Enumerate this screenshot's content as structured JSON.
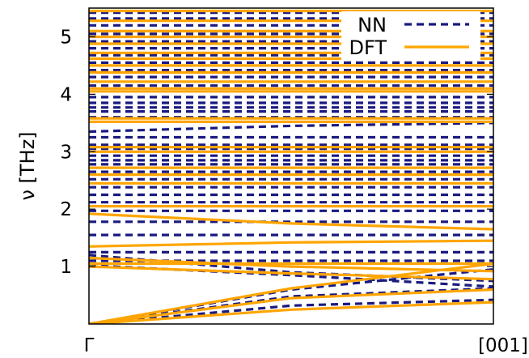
{
  "chart_data": {
    "type": "line",
    "ylabel": "ν [THz]",
    "x_tick_labels": [
      "Γ",
      "[001]"
    ],
    "y_ticks": [
      1,
      2,
      3,
      4,
      5
    ],
    "xlim": [
      0,
      1
    ],
    "ylim": [
      0,
      5.5
    ],
    "grid": false,
    "legend_position": "top-right",
    "series": [
      {
        "name": "NN",
        "style": "dashed",
        "color": "#1a1a80",
        "bands": [
          {
            "x": [
              0,
              0.5,
              1
            ],
            "y": [
              0,
              0.32,
              0.42
            ]
          },
          {
            "x": [
              0,
              0.5,
              1
            ],
            "y": [
              0,
              0.48,
              0.62
            ]
          },
          {
            "x": [
              0,
              0.5,
              1
            ],
            "y": [
              0,
              0.6,
              0.95
            ]
          },
          {
            "x": [
              0,
              0.5,
              1
            ],
            "y": [
              1.02,
              0.85,
              0.65
            ]
          },
          {
            "x": [
              0,
              0.5,
              1
            ],
            "y": [
              1.2,
              0.9,
              0.75
            ]
          },
          {
            "x": [
              0,
              1
            ],
            "y": [
              1.1,
              1.1
            ]
          },
          {
            "x": [
              0,
              1
            ],
            "y": [
              1.25,
              1.25
            ]
          },
          {
            "x": [
              0,
              1
            ],
            "y": [
              1.55,
              1.55
            ]
          },
          {
            "x": [
              0,
              1
            ],
            "y": [
              1.78,
              1.78
            ]
          },
          {
            "x": [
              0,
              1
            ],
            "y": [
              1.97,
              1.97
            ]
          },
          {
            "x": [
              0,
              1
            ],
            "y": [
              2.12,
              2.12
            ]
          },
          {
            "x": [
              0,
              1
            ],
            "y": [
              2.25,
              2.25
            ]
          },
          {
            "x": [
              0,
              1
            ],
            "y": [
              2.38,
              2.38
            ]
          },
          {
            "x": [
              0,
              1
            ],
            "y": [
              2.52,
              2.52
            ]
          },
          {
            "x": [
              0,
              1
            ],
            "y": [
              2.65,
              2.65
            ]
          },
          {
            "x": [
              0,
              1
            ],
            "y": [
              2.78,
              2.78
            ]
          },
          {
            "x": [
              0,
              1
            ],
            "y": [
              2.85,
              2.85
            ]
          },
          {
            "x": [
              0,
              1
            ],
            "y": [
              2.93,
              2.93
            ]
          },
          {
            "x": [
              0,
              1
            ],
            "y": [
              3.05,
              3.05
            ]
          },
          {
            "x": [
              0,
              1
            ],
            "y": [
              3.12,
              3.12
            ]
          },
          {
            "x": [
              0,
              1
            ],
            "y": [
              3.25,
              3.25
            ]
          },
          {
            "x": [
              0,
              0.5,
              1
            ],
            "y": [
              3.35,
              3.45,
              3.5
            ]
          },
          {
            "x": [
              0,
              1
            ],
            "y": [
              3.6,
              3.6
            ]
          },
          {
            "x": [
              0,
              1
            ],
            "y": [
              3.7,
              3.7
            ]
          },
          {
            "x": [
              0,
              1
            ],
            "y": [
              3.77,
              3.77
            ]
          },
          {
            "x": [
              0,
              1
            ],
            "y": [
              3.85,
              3.85
            ]
          },
          {
            "x": [
              0,
              1
            ],
            "y": [
              3.95,
              3.95
            ]
          },
          {
            "x": [
              0,
              1
            ],
            "y": [
              4.15,
              4.15
            ]
          },
          {
            "x": [
              0,
              1
            ],
            "y": [
              4.3,
              4.3
            ]
          },
          {
            "x": [
              0,
              1
            ],
            "y": [
              4.42,
              4.42
            ]
          },
          {
            "x": [
              0,
              1
            ],
            "y": [
              4.55,
              4.55
            ]
          },
          {
            "x": [
              0,
              1
            ],
            "y": [
              4.68,
              4.68
            ]
          },
          {
            "x": [
              0,
              1
            ],
            "y": [
              4.8,
              4.8
            ]
          },
          {
            "x": [
              0,
              1
            ],
            "y": [
              4.92,
              4.92
            ]
          },
          {
            "x": [
              0,
              1
            ],
            "y": [
              5.05,
              5.05
            ]
          },
          {
            "x": [
              0,
              1
            ],
            "y": [
              5.2,
              5.2
            ]
          },
          {
            "x": [
              0,
              1
            ],
            "y": [
              5.32,
              5.32
            ]
          },
          {
            "x": [
              0,
              1
            ],
            "y": [
              5.42,
              5.42
            ]
          }
        ]
      },
      {
        "name": "DFT",
        "style": "solid",
        "color": "#ffa500",
        "bands": [
          {
            "x": [
              0,
              0.5,
              1
            ],
            "y": [
              0,
              0.25,
              0.38
            ]
          },
          {
            "x": [
              0,
              0.5,
              1
            ],
            "y": [
              0,
              0.45,
              0.6
            ]
          },
          {
            "x": [
              0,
              0.5,
              1
            ],
            "y": [
              0,
              0.62,
              1.05
            ]
          },
          {
            "x": [
              0,
              0.5,
              1
            ],
            "y": [
              1.0,
              0.88,
              0.78
            ]
          },
          {
            "x": [
              0,
              0.5,
              1
            ],
            "y": [
              1.15,
              1.0,
              0.92
            ]
          },
          {
            "x": [
              0,
              1
            ],
            "y": [
              1.05,
              1.05
            ]
          },
          {
            "x": [
              0,
              0.5,
              1
            ],
            "y": [
              1.35,
              1.42,
              1.45
            ]
          },
          {
            "x": [
              0,
              0.5,
              1
            ],
            "y": [
              1.92,
              1.75,
              1.65
            ]
          },
          {
            "x": [
              0,
              1
            ],
            "y": [
              2.05,
              2.05
            ]
          },
          {
            "x": [
              0,
              1
            ],
            "y": [
              2.45,
              2.45
            ]
          },
          {
            "x": [
              0,
              1
            ],
            "y": [
              2.6,
              2.6
            ]
          },
          {
            "x": [
              0,
              1
            ],
            "y": [
              2.72,
              2.72
            ]
          },
          {
            "x": [
              0,
              1
            ],
            "y": [
              3.0,
              3.0
            ]
          },
          {
            "x": [
              0,
              1
            ],
            "y": [
              3.08,
              3.08
            ]
          },
          {
            "x": [
              0,
              1
            ],
            "y": [
              3.52,
              3.52
            ]
          },
          {
            "x": [
              0,
              1
            ],
            "y": [
              3.58,
              3.58
            ]
          },
          {
            "x": [
              0,
              1
            ],
            "y": [
              4.05,
              4.05
            ]
          },
          {
            "x": [
              0,
              1
            ],
            "y": [
              4.1,
              4.1
            ]
          },
          {
            "x": [
              0,
              1
            ],
            "y": [
              4.22,
              4.22
            ]
          },
          {
            "x": [
              0,
              1
            ],
            "y": [
              4.38,
              4.38
            ]
          },
          {
            "x": [
              0,
              1
            ],
            "y": [
              4.5,
              4.5
            ]
          },
          {
            "x": [
              0,
              1
            ],
            "y": [
              4.62,
              4.62
            ]
          },
          {
            "x": [
              0,
              1
            ],
            "y": [
              4.72,
              4.72
            ]
          },
          {
            "x": [
              0,
              1
            ],
            "y": [
              4.88,
              4.88
            ]
          },
          {
            "x": [
              0,
              1
            ],
            "y": [
              5.0,
              5.0
            ]
          },
          {
            "x": [
              0,
              1
            ],
            "y": [
              5.1,
              5.1
            ]
          },
          {
            "x": [
              0,
              1
            ],
            "y": [
              5.28,
              5.28
            ]
          },
          {
            "x": [
              0,
              1
            ],
            "y": [
              5.45,
              5.45
            ]
          }
        ]
      }
    ]
  }
}
